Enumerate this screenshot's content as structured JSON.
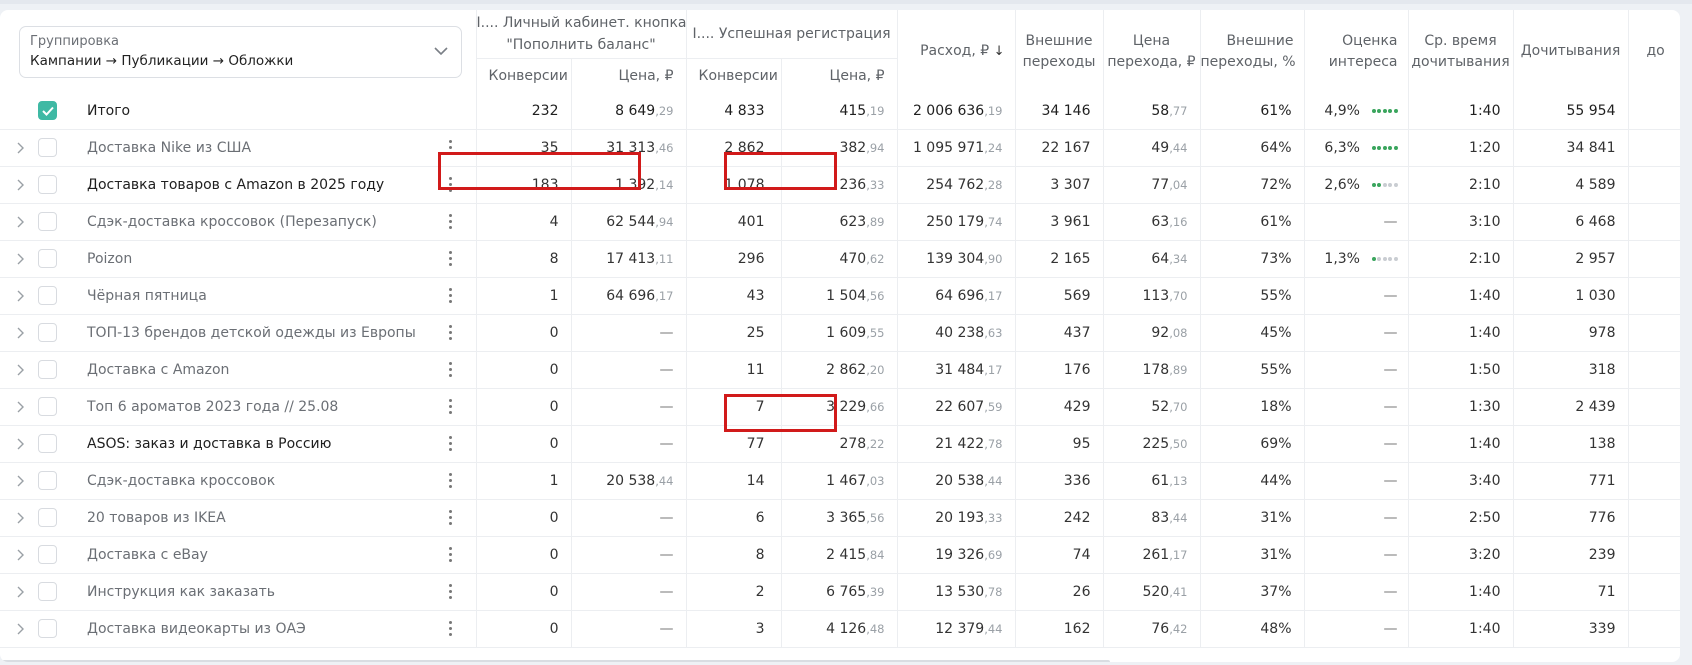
{
  "grouping": {
    "label": "Группировка",
    "value": "Кампании → Публикации → Обложки"
  },
  "headers": {
    "group1": "I.... Личный кабинет. кнопка \"Пополнить баланс\"",
    "group1_line1": "I.... Личный кабинет. кнопка",
    "group1_line2": "\"Пополнить баланс\"",
    "group2": "I.... Успешная регистрация",
    "conv": "Конверсии",
    "price": "Цена, ₽",
    "spend": "Расход, ₽",
    "ext": [
      "Внешние",
      "переходы"
    ],
    "cpc": [
      "Цена",
      "перехода, ₽"
    ],
    "ext_pct": [
      "Внешние",
      "переходы, %"
    ],
    "interest": [
      "Оценка",
      "интереса"
    ],
    "avgtime": [
      "Ср. время",
      "дочитывания"
    ],
    "reads": "Дочитывания",
    "cut": "до"
  },
  "total": {
    "name": "Итого",
    "c1": "232",
    "p1": [
      "8 649",
      ",29"
    ],
    "c2": "4 833",
    "p2": [
      "415",
      ",19"
    ],
    "spend": [
      "2 006 636",
      ",19"
    ],
    "ext": "34 146",
    "cpc": [
      "58",
      ",77"
    ],
    "pct": "61%",
    "interest": "4,9%",
    "dots": 5,
    "time": "1:40",
    "reads": "55 954"
  },
  "rows": [
    {
      "name": "Доставка Nike из США",
      "dark": false,
      "c1": "35",
      "p1": [
        "31 313",
        ",46"
      ],
      "c2": "2 862",
      "p2": [
        "382",
        ",94"
      ],
      "spend": [
        "1 095 971",
        ",24"
      ],
      "ext": "22 167",
      "cpc": [
        "49",
        ",44"
      ],
      "pct": "64%",
      "interest": "6,3%",
      "dots": 5,
      "time": "1:20",
      "reads": "34 841"
    },
    {
      "name": "Доставка товаров с Amazon в 2025 году",
      "dark": true,
      "c1": "183",
      "p1": [
        "1 392",
        ",14"
      ],
      "c2": "1 078",
      "p2": [
        "236",
        ",33"
      ],
      "spend": [
        "254 762",
        ",28"
      ],
      "ext": "3 307",
      "cpc": [
        "77",
        ",04"
      ],
      "pct": "72%",
      "interest": "2,6%",
      "dots": 2,
      "time": "2:10",
      "reads": "4 589"
    },
    {
      "name": "Сдэк-доставка кроссовок (Перезапуск)",
      "dark": false,
      "c1": "4",
      "p1": [
        "62 544",
        ",94"
      ],
      "c2": "401",
      "p2": [
        "623",
        ",89"
      ],
      "spend": [
        "250 179",
        ",74"
      ],
      "ext": "3 961",
      "cpc": [
        "63",
        ",16"
      ],
      "pct": "61%",
      "interest": "—",
      "dots": 0,
      "time": "3:10",
      "reads": "6 468"
    },
    {
      "name": "Poizon",
      "dark": false,
      "c1": "8",
      "p1": [
        "17 413",
        ",11"
      ],
      "c2": "296",
      "p2": [
        "470",
        ",62"
      ],
      "spend": [
        "139 304",
        ",90"
      ],
      "ext": "2 165",
      "cpc": [
        "64",
        ",34"
      ],
      "pct": "73%",
      "interest": "1,3%",
      "dots": 1,
      "time": "2:10",
      "reads": "2 957"
    },
    {
      "name": "Чёрная пятница",
      "dark": false,
      "c1": "1",
      "p1": [
        "64 696",
        ",17"
      ],
      "c2": "43",
      "p2": [
        "1 504",
        ",56"
      ],
      "spend": [
        "64 696",
        ",17"
      ],
      "ext": "569",
      "cpc": [
        "113",
        ",70"
      ],
      "pct": "55%",
      "interest": "—",
      "dots": 0,
      "time": "1:40",
      "reads": "1 030"
    },
    {
      "name": "ТОП-13 брендов детской одежды из Европы",
      "dark": false,
      "c1": "0",
      "p1": [
        "—",
        ""
      ],
      "c2": "25",
      "p2": [
        "1 609",
        ",55"
      ],
      "spend": [
        "40 238",
        ",63"
      ],
      "ext": "437",
      "cpc": [
        "92",
        ",08"
      ],
      "pct": "45%",
      "interest": "—",
      "dots": 0,
      "time": "1:40",
      "reads": "978"
    },
    {
      "name": "Доставка с Amazon",
      "dark": false,
      "c1": "0",
      "p1": [
        "—",
        ""
      ],
      "c2": "11",
      "p2": [
        "2 862",
        ",20"
      ],
      "spend": [
        "31 484",
        ",17"
      ],
      "ext": "176",
      "cpc": [
        "178",
        ",89"
      ],
      "pct": "55%",
      "interest": "—",
      "dots": 0,
      "time": "1:50",
      "reads": "318"
    },
    {
      "name": "Топ 6 ароматов 2023 года // 25.08",
      "dark": false,
      "c1": "0",
      "p1": [
        "—",
        ""
      ],
      "c2": "7",
      "p2": [
        "3 229",
        ",66"
      ],
      "spend": [
        "22 607",
        ",59"
      ],
      "ext": "429",
      "cpc": [
        "52",
        ",70"
      ],
      "pct": "18%",
      "interest": "—",
      "dots": 0,
      "time": "1:30",
      "reads": "2 439"
    },
    {
      "name": "ASOS: заказ и доставка в Россию",
      "dark": true,
      "c1": "0",
      "p1": [
        "—",
        ""
      ],
      "c2": "77",
      "p2": [
        "278",
        ",22"
      ],
      "spend": [
        "21 422",
        ",78"
      ],
      "ext": "95",
      "cpc": [
        "225",
        ",50"
      ],
      "pct": "69%",
      "interest": "—",
      "dots": 0,
      "time": "1:40",
      "reads": "138"
    },
    {
      "name": "Сдэк-доставка кроссовок",
      "dark": false,
      "c1": "1",
      "p1": [
        "20 538",
        ",44"
      ],
      "c2": "14",
      "p2": [
        "1 467",
        ",03"
      ],
      "spend": [
        "20 538",
        ",44"
      ],
      "ext": "336",
      "cpc": [
        "61",
        ",13"
      ],
      "pct": "44%",
      "interest": "—",
      "dots": 0,
      "time": "3:40",
      "reads": "771"
    },
    {
      "name": "20 товаров из IKEA",
      "dark": false,
      "c1": "0",
      "p1": [
        "—",
        ""
      ],
      "c2": "6",
      "p2": [
        "3 365",
        ",56"
      ],
      "spend": [
        "20 193",
        ",33"
      ],
      "ext": "242",
      "cpc": [
        "83",
        ",44"
      ],
      "pct": "31%",
      "interest": "—",
      "dots": 0,
      "time": "2:50",
      "reads": "776"
    },
    {
      "name": "Доставка с eBay",
      "dark": false,
      "c1": "0",
      "p1": [
        "—",
        ""
      ],
      "c2": "8",
      "p2": [
        "2 415",
        ",84"
      ],
      "spend": [
        "19 326",
        ",69"
      ],
      "ext": "74",
      "cpc": [
        "261",
        ",17"
      ],
      "pct": "31%",
      "interest": "—",
      "dots": 0,
      "time": "3:20",
      "reads": "239"
    },
    {
      "name": "Инструкция как заказать",
      "dark": false,
      "c1": "0",
      "p1": [
        "—",
        ""
      ],
      "c2": "2",
      "p2": [
        "6 765",
        ",39"
      ],
      "spend": [
        "13 530",
        ",78"
      ],
      "ext": "26",
      "cpc": [
        "520",
        ",41"
      ],
      "pct": "37%",
      "interest": "—",
      "dots": 0,
      "time": "1:40",
      "reads": "71"
    },
    {
      "name": "Доставка видеокарты из ОАЭ",
      "dark": false,
      "c1": "0",
      "p1": [
        "—",
        ""
      ],
      "c2": "3",
      "p2": [
        "4 126",
        ",48"
      ],
      "spend": [
        "12 379",
        ",44"
      ],
      "ext": "162",
      "cpc": [
        "76",
        ",42"
      ],
      "pct": "48%",
      "interest": "—",
      "dots": 0,
      "time": "1:40",
      "reads": "339"
    }
  ],
  "colors": {
    "checkbox_accent": "#3fb9a4",
    "highlight": "#d11a1a",
    "interest_dot_on": "#3aa55d"
  }
}
